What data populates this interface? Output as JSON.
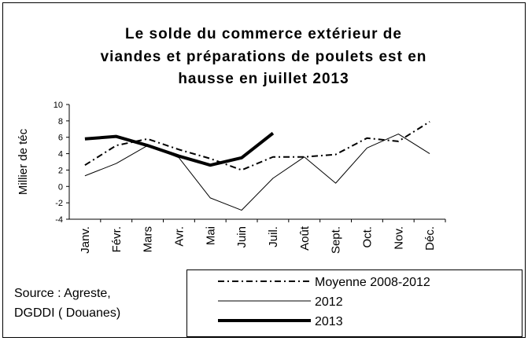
{
  "chart_data": {
    "type": "line",
    "title": [
      "Le solde du commerce extérieur de",
      "viandes et préparations de poulets est en",
      "hausse en juillet 2013"
    ],
    "y_label": "Millier de téc",
    "source": [
      "Source : Agreste,",
      "DGDDI ( Douanes)"
    ],
    "categories": [
      "Janv.",
      "Févr.",
      "Mars",
      "Avr.",
      "Mai",
      "Juin",
      "Juil.",
      "Août",
      "Sept.",
      "Oct.",
      "Nov.",
      "Déc."
    ],
    "ylim": [
      -4,
      10
    ],
    "yticks": [
      -4,
      -2,
      0,
      2,
      4,
      6,
      8,
      10
    ],
    "series": [
      {
        "name": "Moyenne 2008-2012",
        "color": "#000000",
        "values": [
          2.6,
          5.0,
          5.8,
          4.5,
          3.4,
          2.0,
          3.6,
          3.6,
          3.9,
          5.9,
          5.5,
          7.9
        ]
      },
      {
        "name": "2012",
        "color": "#000000",
        "values": [
          1.3,
          2.8,
          5.0,
          3.5,
          -1.4,
          -2.9,
          1.0,
          3.6,
          0.4,
          4.7,
          6.4,
          4.0
        ]
      },
      {
        "name": "2013",
        "color": "#000000",
        "values": [
          5.8,
          6.1,
          5.0,
          3.7,
          2.6,
          3.5,
          6.5,
          null,
          null,
          null,
          null,
          null
        ]
      }
    ]
  }
}
